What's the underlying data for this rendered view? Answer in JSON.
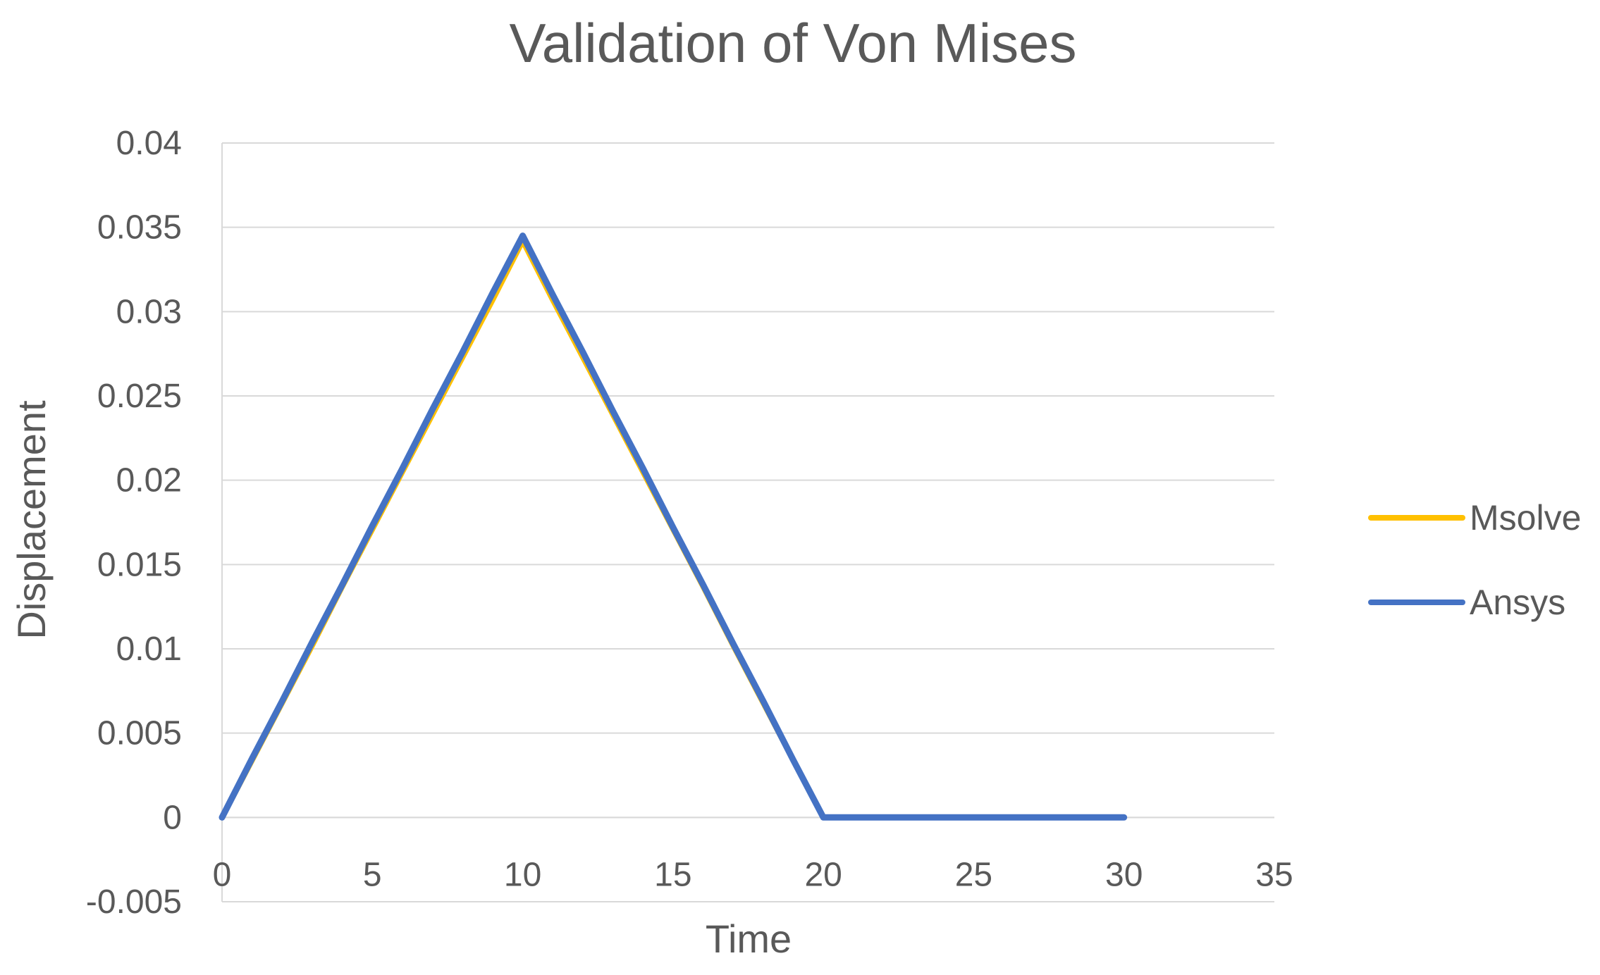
{
  "chart_data": {
    "type": "line",
    "title": "Validation of Von Mises",
    "xlabel": "Time",
    "ylabel": "Displacement",
    "xlim": [
      0,
      35
    ],
    "ylim": [
      -0.005,
      0.04
    ],
    "x_ticks": [
      0,
      5,
      10,
      15,
      20,
      25,
      30,
      35
    ],
    "x_tick_labels": [
      "0",
      "5",
      "10",
      "15",
      "20",
      "25",
      "30",
      "35"
    ],
    "y_ticks": [
      -0.005,
      0,
      0.005,
      0.01,
      0.015,
      0.02,
      0.025,
      0.03,
      0.035,
      0.04
    ],
    "y_tick_labels": [
      "-0.005",
      "0",
      "0.005",
      "0.01",
      "0.015",
      "0.02",
      "0.025",
      "0.03",
      "0.035",
      "0.04"
    ],
    "grid": true,
    "legend_position": "right",
    "series": [
      {
        "name": "Msolve",
        "color": "#FFC000",
        "x": [
          0,
          1,
          2,
          3,
          4,
          5,
          6,
          7,
          8,
          9,
          10,
          11,
          12,
          13,
          14,
          15,
          16,
          17,
          18,
          19,
          20,
          21,
          22,
          23,
          24,
          25,
          26,
          27,
          28,
          29,
          30
        ],
        "y": [
          0,
          0.0034,
          0.0068,
          0.0102,
          0.0137,
          0.0171,
          0.0205,
          0.0239,
          0.0273,
          0.0307,
          0.0342,
          0.0307,
          0.0273,
          0.0239,
          0.0205,
          0.0171,
          0.0137,
          0.0102,
          0.0068,
          0.0034,
          0,
          0,
          0,
          0,
          0,
          0,
          0,
          0,
          0,
          0,
          0
        ]
      },
      {
        "name": "Ansys",
        "color": "#4472C4",
        "x": [
          0,
          1,
          2,
          3,
          4,
          5,
          6,
          7,
          8,
          9,
          10,
          11,
          12,
          13,
          14,
          15,
          16,
          17,
          18,
          19,
          20,
          21,
          22,
          23,
          24,
          25,
          26,
          27,
          28,
          29,
          30
        ],
        "y": [
          0,
          0.0035,
          0.0069,
          0.0104,
          0.0138,
          0.0173,
          0.0207,
          0.0242,
          0.0276,
          0.0311,
          0.0345,
          0.031,
          0.0276,
          0.0241,
          0.0207,
          0.0172,
          0.0138,
          0.0103,
          0.0069,
          0.0034,
          0,
          0,
          0,
          0,
          0,
          0,
          0,
          0,
          0,
          0,
          0
        ]
      }
    ]
  }
}
